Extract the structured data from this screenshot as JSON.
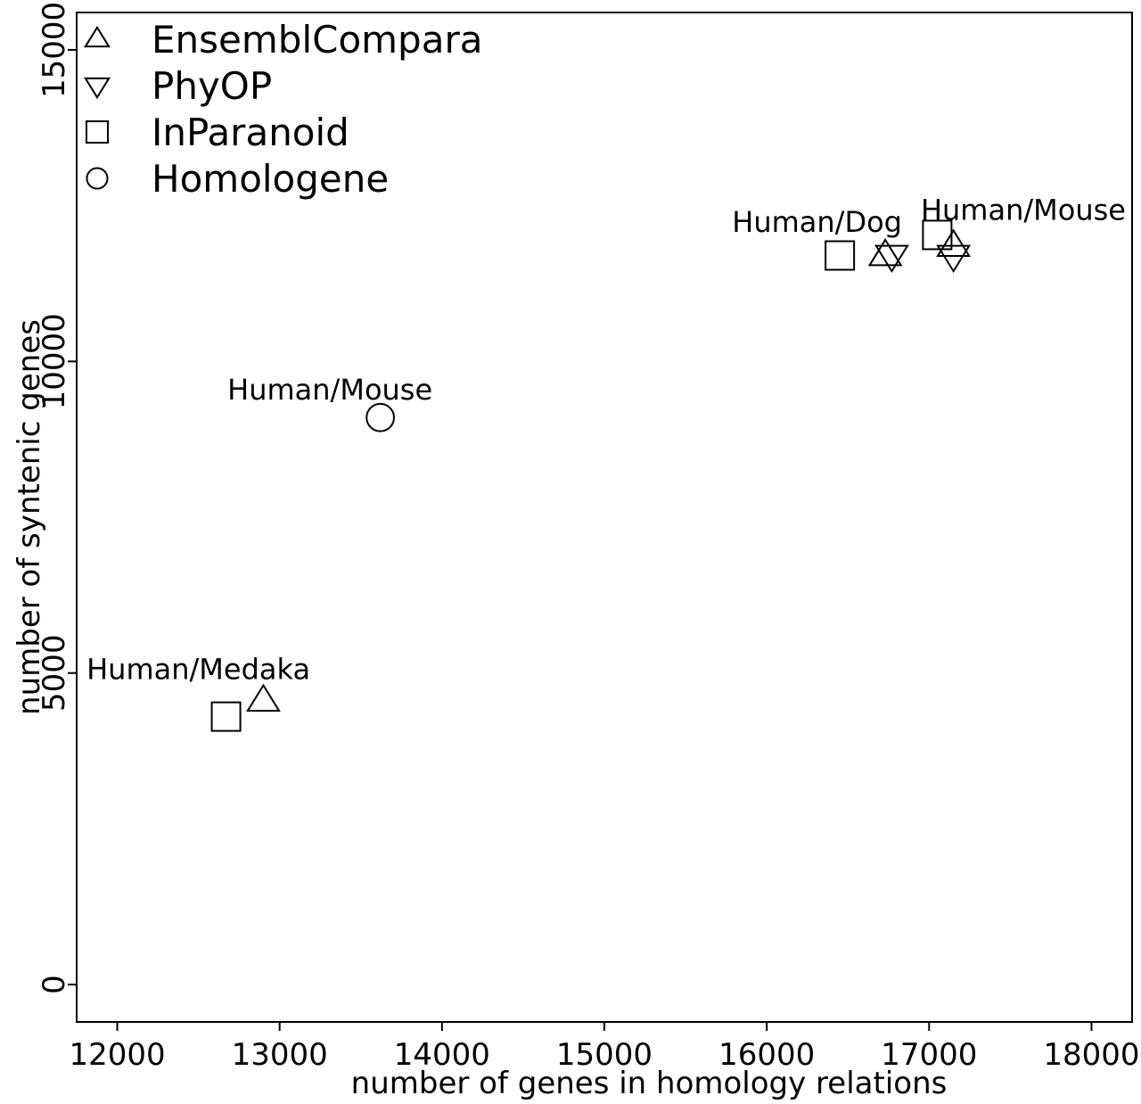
{
  "chart_data": {
    "type": "scatter",
    "title": "",
    "xlabel": "number of genes in homology relations",
    "ylabel": "number of syntenic genes",
    "xlim": [
      11750,
      18250
    ],
    "ylim": [
      -600,
      15600
    ],
    "xticks": [
      12000,
      13000,
      14000,
      15000,
      16000,
      17000,
      18000
    ],
    "yticks": [
      0,
      5000,
      10000,
      15000
    ],
    "grid": false,
    "legend_position": "top-left",
    "series": [
      {
        "name": "EnsemblCompara",
        "marker": "triangle-up",
        "points": [
          {
            "x": 12900,
            "y": 4550
          },
          {
            "x": 16730,
            "y": 11700
          },
          {
            "x": 17150,
            "y": 11850
          }
        ]
      },
      {
        "name": "PhyOP",
        "marker": "triangle-down",
        "points": [
          {
            "x": 16770,
            "y": 11700
          },
          {
            "x": 17150,
            "y": 11700
          }
        ]
      },
      {
        "name": "InParanoid",
        "marker": "square",
        "points": [
          {
            "x": 12670,
            "y": 4300
          },
          {
            "x": 16450,
            "y": 11700
          },
          {
            "x": 17050,
            "y": 12030
          }
        ]
      },
      {
        "name": "Homologene",
        "marker": "circle",
        "points": [
          {
            "x": 13620,
            "y": 9100
          }
        ]
      }
    ],
    "annotations": [
      {
        "text": "Human/Medaka",
        "x": 12500,
        "y": 4900
      },
      {
        "text": "Human/Mouse",
        "x": 13310,
        "y": 9390
      },
      {
        "text": "Human/Dog",
        "x": 16310,
        "y": 12080
      },
      {
        "text": "Human/Mouse",
        "x": 17580,
        "y": 12270
      }
    ]
  }
}
